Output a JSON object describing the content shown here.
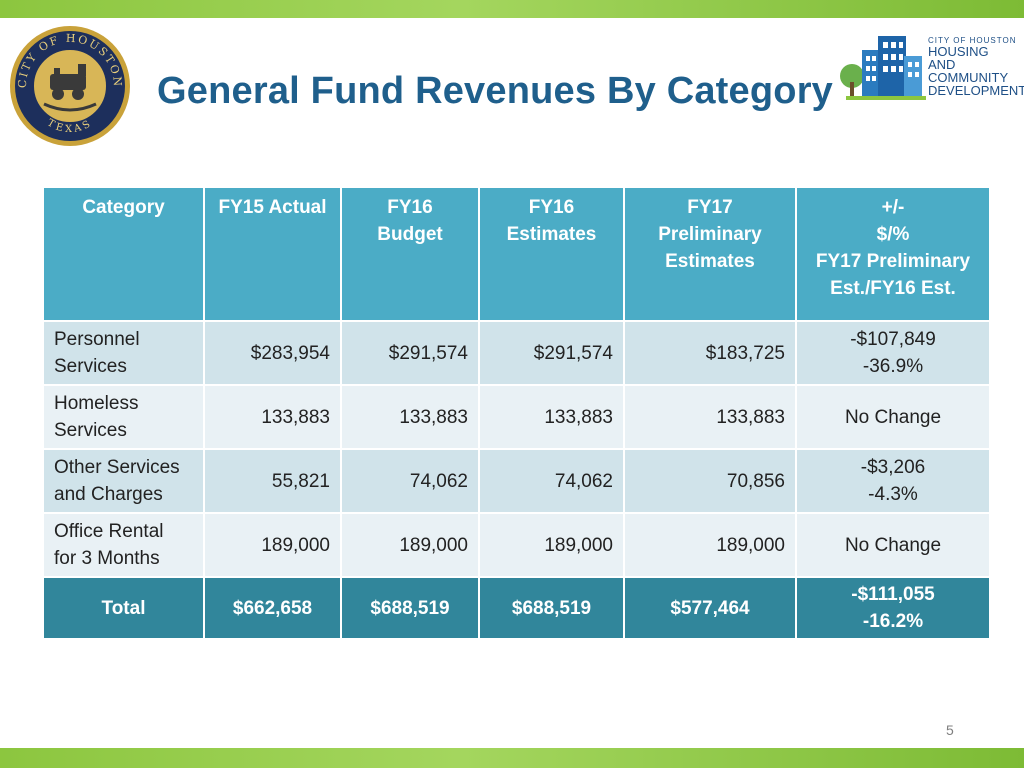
{
  "slide": {
    "title": "General Fund Revenues By Category",
    "page_number": "5"
  },
  "seal": {
    "top_text": "CITY OF HOUSTON",
    "bottom_text": "TEXAS"
  },
  "logo": {
    "line1": "CITY OF HOUSTON",
    "line2": "HOUSING AND",
    "line3": "COMMUNITY",
    "line4": "DEVELOPMENT"
  },
  "colors": {
    "header": "#4bacc6",
    "total_row": "#31869b",
    "row_dark": "#d0e3ea",
    "row_light": "#e9f1f5",
    "title": "#1f5f8c",
    "accent_green": "#8cc63f"
  },
  "table": {
    "headers": [
      "Category",
      "FY15 Actual",
      "FY16\nBudget",
      "FY16\nEstimates",
      "FY17\nPreliminary\nEstimates",
      "+/-\n$/%\nFY17 Preliminary\nEst./FY16 Est."
    ],
    "rows": [
      {
        "category": "Personnel\nServices",
        "fy15": "$283,954",
        "fy16_budget": "$291,574",
        "fy16_est": "$291,574",
        "fy17": "$183,725",
        "change": "-$107,849\n-36.9%"
      },
      {
        "category": "Homeless\nServices",
        "fy15": "133,883",
        "fy16_budget": "133,883",
        "fy16_est": "133,883",
        "fy17": "133,883",
        "change": "No Change"
      },
      {
        "category": "Other Services\nand Charges",
        "fy15": "55,821",
        "fy16_budget": "74,062",
        "fy16_est": "74,062",
        "fy17": "70,856",
        "change": "-$3,206\n-4.3%"
      },
      {
        "category": "Office Rental\nfor 3 Months",
        "fy15": "189,000",
        "fy16_budget": "189,000",
        "fy16_est": "189,000",
        "fy17": "189,000",
        "change": "No Change"
      }
    ],
    "total": {
      "category": "Total",
      "fy15": "$662,658",
      "fy16_budget": "$688,519",
      "fy16_est": "$688,519",
      "fy17": "$577,464",
      "change": "-$111,055\n-16.2%"
    }
  }
}
